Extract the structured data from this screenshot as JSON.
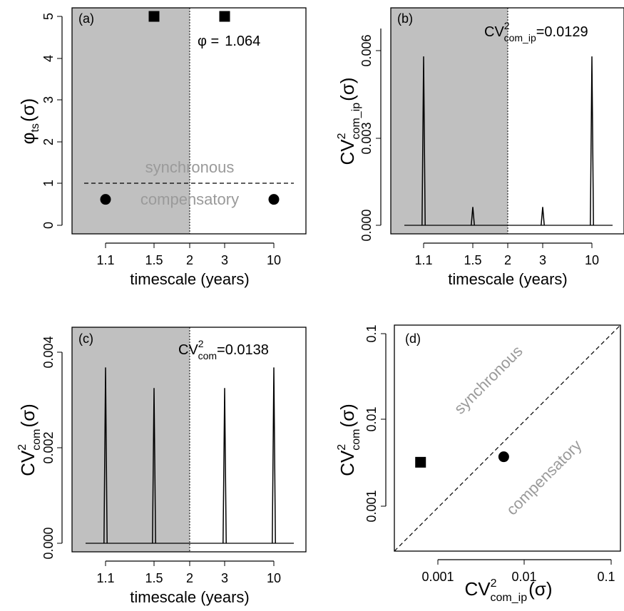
{
  "chart_data": [
    {
      "panel": "(a)",
      "type": "scatter",
      "xlabel": "timescale (years)",
      "ylabel_main": "φ",
      "ylabel_sub": "ts",
      "ylabel_arg": "(σ)",
      "annotation_prefix": "φ =",
      "annotation_value": "1.064",
      "shaded_region": "timescale < 2",
      "x_ticks": [
        "1.1",
        "1.5",
        "2",
        "3",
        "10"
      ],
      "y_ticks": [
        "0",
        "1",
        "2",
        "3",
        "4",
        "5"
      ],
      "ylim": [
        0,
        5
      ],
      "reference_line": 1,
      "region_labels": {
        "above": "synchronous",
        "below": "compensatory"
      },
      "points": [
        {
          "x": "1.1",
          "y": 0.62,
          "marker": "circle"
        },
        {
          "x": "1.5",
          "y": 5.0,
          "marker": "square"
        },
        {
          "x": "3",
          "y": 5.0,
          "marker": "square"
        },
        {
          "x": "10",
          "y": 0.62,
          "marker": "circle"
        }
      ]
    },
    {
      "panel": "(b)",
      "type": "line",
      "xlabel": "timescale (years)",
      "ylabel_main": "CV",
      "ylabel_sup": "2",
      "ylabel_sub": "com_ip",
      "ylabel_arg": "(σ)",
      "annotation_main": "CV",
      "annotation_sup": "2",
      "annotation_sub": "com_ip",
      "annotation_value": "=0.0129",
      "shaded_region": "timescale < 2",
      "x_ticks": [
        "1.1",
        "1.5",
        "2",
        "3",
        "10"
      ],
      "y_ticks": [
        "0.000",
        "0.003",
        "0.006"
      ],
      "ylim": [
        0,
        0.0068
      ],
      "peaks": [
        {
          "x": "1.1",
          "y": 0.0058
        },
        {
          "x": "1.5",
          "y": 0.00063
        },
        {
          "x": "3",
          "y": 0.00063
        },
        {
          "x": "10",
          "y": 0.0058
        }
      ]
    },
    {
      "panel": "(c)",
      "type": "line",
      "xlabel": "timescale (years)",
      "ylabel_main": "CV",
      "ylabel_sup": "2",
      "ylabel_sub": "com",
      "ylabel_arg": "(σ)",
      "annotation_main": "CV",
      "annotation_sup": "2",
      "annotation_sub": "com",
      "annotation_value": "=0.0138",
      "shaded_region": "timescale < 2",
      "x_ticks": [
        "1.1",
        "1.5",
        "2",
        "3",
        "10"
      ],
      "y_ticks": [
        "0.000",
        "0.002",
        "0.004"
      ],
      "ylim": [
        0,
        0.0045
      ],
      "peaks": [
        {
          "x": "1.1",
          "y": 0.00368
        },
        {
          "x": "1.5",
          "y": 0.00325
        },
        {
          "x": "3",
          "y": 0.00325
        },
        {
          "x": "10",
          "y": 0.00368
        }
      ]
    },
    {
      "panel": "(d)",
      "type": "scatter",
      "xlabel_main": "CV",
      "xlabel_sup": "2",
      "xlabel_sub": "com_ip",
      "xlabel_arg": "(σ)",
      "ylabel_main": "CV",
      "ylabel_sup": "2",
      "ylabel_sub": "com",
      "ylabel_arg": "(σ)",
      "x_scale": "log",
      "y_scale": "log",
      "x_ticks": [
        "0.001",
        "0.01",
        "0.1"
      ],
      "y_ticks": [
        "0.001",
        "0.01",
        "0.1"
      ],
      "xlim": [
        0.0002,
        0.12
      ],
      "ylim": [
        0.0002,
        0.12
      ],
      "identity_line": true,
      "region_labels": {
        "above": "synchronous",
        "below": "compensatory"
      },
      "points": [
        {
          "x": 0.00063,
          "y": 0.0032,
          "marker": "square"
        },
        {
          "x": 0.0058,
          "y": 0.0037,
          "marker": "circle"
        }
      ]
    }
  ]
}
